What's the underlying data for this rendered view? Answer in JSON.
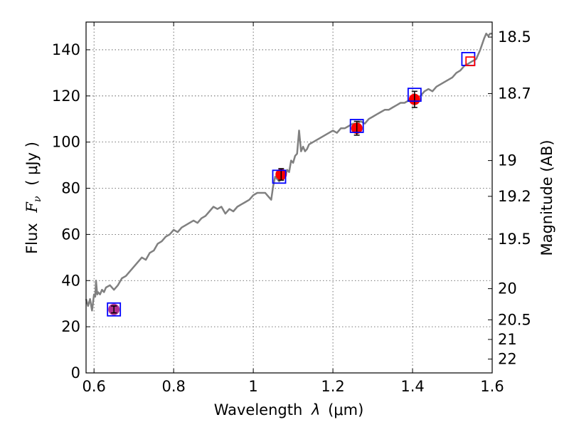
{
  "chart_data": {
    "type": "line",
    "xlabel_text": "Wavelength",
    "xlabel_symbol": "λ",
    "xlabel_unit": "(μm)",
    "ylabel_text": "Flux",
    "ylabel_symbol": "F",
    "ylabel_subscript": "ν",
    "ylabel_unit": "( μJy )",
    "y2label": "Magnitude (AB)",
    "xlim": [
      0.58,
      1.6
    ],
    "ylim": [
      0,
      152
    ],
    "grid": true,
    "x_ticks": [
      {
        "value": 0.6,
        "label": "0.6"
      },
      {
        "value": 0.8,
        "label": "0.8"
      },
      {
        "value": 1.0,
        "label": "1"
      },
      {
        "value": 1.2,
        "label": "1.2"
      },
      {
        "value": 1.4,
        "label": "1.4"
      },
      {
        "value": 1.6,
        "label": "1.6"
      }
    ],
    "y_ticks": [
      {
        "value": 0,
        "label": "0"
      },
      {
        "value": 20,
        "label": "20"
      },
      {
        "value": 40,
        "label": "40"
      },
      {
        "value": 60,
        "label": "60"
      },
      {
        "value": 80,
        "label": "80"
      },
      {
        "value": 100,
        "label": "100"
      },
      {
        "value": 120,
        "label": "120"
      },
      {
        "value": 140,
        "label": "140"
      }
    ],
    "y2_ticks": [
      {
        "flux": 145.5,
        "label": "18.5"
      },
      {
        "flux": 121.0,
        "label": "18.7"
      },
      {
        "flux": 92.0,
        "label": "19"
      },
      {
        "flux": 76.5,
        "label": "19.2"
      },
      {
        "flux": 58.0,
        "label": "19.5"
      },
      {
        "flux": 36.5,
        "label": "20"
      },
      {
        "flux": 23.0,
        "label": "20.5"
      },
      {
        "flux": 14.5,
        "label": "21"
      },
      {
        "flux": 6.0,
        "label": "22"
      }
    ],
    "spectrum": {
      "color": "#808080",
      "x": [
        0.58,
        0.585,
        0.59,
        0.595,
        0.6,
        0.603,
        0.605,
        0.608,
        0.61,
        0.615,
        0.62,
        0.625,
        0.63,
        0.64,
        0.65,
        0.66,
        0.67,
        0.68,
        0.69,
        0.7,
        0.71,
        0.72,
        0.73,
        0.74,
        0.75,
        0.76,
        0.77,
        0.78,
        0.79,
        0.8,
        0.81,
        0.82,
        0.83,
        0.84,
        0.85,
        0.86,
        0.87,
        0.88,
        0.89,
        0.9,
        0.91,
        0.92,
        0.93,
        0.94,
        0.95,
        0.96,
        0.97,
        0.98,
        0.99,
        1.0,
        1.01,
        1.02,
        1.03,
        1.035,
        1.04,
        1.045,
        1.05,
        1.055,
        1.06,
        1.065,
        1.07,
        1.075,
        1.08,
        1.085,
        1.09,
        1.095,
        1.1,
        1.105,
        1.11,
        1.115,
        1.12,
        1.125,
        1.13,
        1.135,
        1.14,
        1.15,
        1.16,
        1.17,
        1.18,
        1.19,
        1.2,
        1.21,
        1.22,
        1.23,
        1.24,
        1.25,
        1.26,
        1.27,
        1.28,
        1.29,
        1.3,
        1.31,
        1.32,
        1.33,
        1.34,
        1.35,
        1.36,
        1.37,
        1.38,
        1.39,
        1.4,
        1.41,
        1.42,
        1.43,
        1.44,
        1.45,
        1.46,
        1.47,
        1.48,
        1.49,
        1.5,
        1.51,
        1.52,
        1.53,
        1.54,
        1.55,
        1.56,
        1.57,
        1.58,
        1.585,
        1.59,
        1.595,
        1.6
      ],
      "y": [
        32,
        29,
        32,
        27,
        34,
        33,
        40,
        34,
        35,
        34,
        36,
        35,
        37,
        38,
        36,
        38,
        41,
        42,
        44,
        46,
        48,
        50,
        49,
        52,
        53,
        56,
        57,
        59,
        60,
        62,
        61,
        63,
        64,
        65,
        66,
        65,
        67,
        68,
        70,
        72,
        71,
        72,
        69,
        71,
        70,
        72,
        73,
        74,
        75,
        77,
        78,
        78,
        78,
        77,
        76,
        75,
        81,
        85,
        84,
        83,
        84,
        86,
        85,
        88,
        87,
        92,
        91,
        94,
        95,
        105,
        96,
        98,
        96,
        97,
        99,
        100,
        101,
        102,
        103,
        104,
        105,
        104,
        106,
        106,
        107,
        108,
        108,
        109,
        108,
        110,
        111,
        112,
        113,
        114,
        114,
        115,
        116,
        117,
        117,
        118,
        118,
        119,
        120,
        122,
        123,
        122,
        124,
        125,
        126,
        127,
        128,
        130,
        131,
        133,
        134,
        135,
        136,
        140,
        145,
        147,
        146,
        147,
        147
      ]
    },
    "markers": [
      {
        "name": "filled circles",
        "shape": "circle",
        "fill": "#ff0000",
        "stroke": "#000000",
        "points": [
          {
            "x": 0.65,
            "y": 27.5,
            "err": 1.5,
            "fill": "#b03090"
          },
          {
            "x": 1.07,
            "y": 86.0,
            "err": 2.5
          },
          {
            "x": 1.26,
            "y": 106.0,
            "err": 3.0
          },
          {
            "x": 1.405,
            "y": 118.5,
            "err": 3.5
          }
        ]
      },
      {
        "name": "open squares blue",
        "shape": "square",
        "fill": "none",
        "stroke": "#0000ff",
        "points": [
          {
            "x": 0.65,
            "y": 27.5
          },
          {
            "x": 1.065,
            "y": 85.0
          },
          {
            "x": 1.26,
            "y": 107.0
          },
          {
            "x": 1.405,
            "y": 120.5
          },
          {
            "x": 1.54,
            "y": 136.0
          }
        ]
      },
      {
        "name": "open squares red",
        "shape": "square-small",
        "fill": "none",
        "stroke": "#ff0000",
        "points": [
          {
            "x": 1.545,
            "y": 135.0
          }
        ]
      }
    ]
  }
}
